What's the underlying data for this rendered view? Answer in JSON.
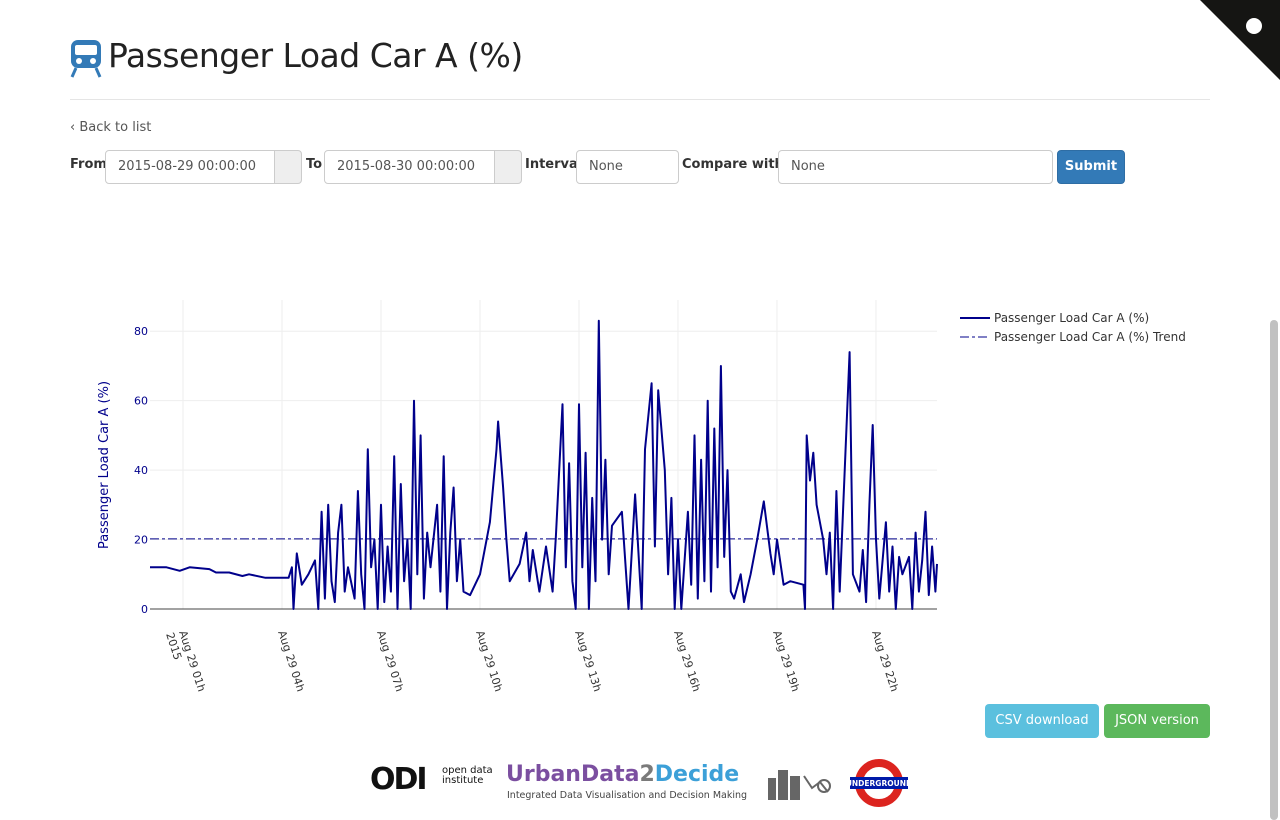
{
  "header": {
    "title": "Passenger Load Car A (%)"
  },
  "nav": {
    "back": "Back to list"
  },
  "form": {
    "from_label": "From",
    "from_value": "2015-08-29 00:00:00",
    "to_label": "To",
    "to_value": "2015-08-30 00:00:00",
    "interval_label": "Interval",
    "interval_value": "None",
    "compare_label": "Compare with..",
    "compare_value": "None",
    "submit": "Submit"
  },
  "downloads": {
    "csv": "CSV download",
    "json": "JSON version"
  },
  "footer": {
    "odi_mark": "ODI",
    "odi_text": "open data institute",
    "ud_part1": "UrbanData",
    "ud_part2": "2",
    "ud_part3": "Decide",
    "ud_tagline": "Integrated Data Visualisation and Decision Making",
    "underground": "UNDERGROUND"
  },
  "chart_data": {
    "type": "line",
    "y_label": "Passenger Load Car A (%)",
    "x_year_label": "2015",
    "xlim": [
      0,
      23.85
    ],
    "ylim": [
      0,
      89
    ],
    "grid": true,
    "xticks": [
      {
        "value": 1,
        "label": "Aug 29 01h"
      },
      {
        "value": 4,
        "label": "Aug 29 04h"
      },
      {
        "value": 7,
        "label": "Aug 29 07h"
      },
      {
        "value": 10,
        "label": "Aug 29 10h"
      },
      {
        "value": 13,
        "label": "Aug 29 13h"
      },
      {
        "value": 16,
        "label": "Aug 29 16h"
      },
      {
        "value": 19,
        "label": "Aug 29 19h"
      },
      {
        "value": 22,
        "label": "Aug 29 22h"
      }
    ],
    "yticks": [
      0,
      20,
      40,
      60,
      80
    ],
    "series": [
      {
        "name": "Passenger Load Car A (%)",
        "color": "#00008b",
        "dash": "solid",
        "x": [
          0,
          0.5,
          0.9,
          1.2,
          1.8,
          2.0,
          2.4,
          2.8,
          3.0,
          3.5,
          4.0,
          4.2,
          4.3,
          4.35,
          4.45,
          4.6,
          4.8,
          5.0,
          5.1,
          5.2,
          5.3,
          5.4,
          5.5,
          5.6,
          5.7,
          5.8,
          5.9,
          6.0,
          6.2,
          6.3,
          6.4,
          6.5,
          6.6,
          6.7,
          6.8,
          6.9,
          7.0,
          7.1,
          7.2,
          7.3,
          7.4,
          7.5,
          7.6,
          7.7,
          7.8,
          7.9,
          8.0,
          8.1,
          8.2,
          8.3,
          8.4,
          8.5,
          8.7,
          8.8,
          8.9,
          9.0,
          9.1,
          9.2,
          9.3,
          9.4,
          9.5,
          9.7,
          10.0,
          10.3,
          10.5,
          10.55,
          10.7,
          10.8,
          10.9,
          11.2,
          11.4,
          11.5,
          11.6,
          11.8,
          12.0,
          12.2,
          12.3,
          12.5,
          12.6,
          12.7,
          12.8,
          12.9,
          13.0,
          13.1,
          13.2,
          13.3,
          13.4,
          13.5,
          13.6,
          13.7,
          13.8,
          13.9,
          14.0,
          14.3,
          14.5,
          14.7,
          14.9,
          15.0,
          15.2,
          15.3,
          15.4,
          15.6,
          15.7,
          15.8,
          15.9,
          16.0,
          16.1,
          16.3,
          16.4,
          16.5,
          16.6,
          16.7,
          16.8,
          16.9,
          17.0,
          17.1,
          17.2,
          17.3,
          17.4,
          17.5,
          17.6,
          17.7,
          17.9,
          18.0,
          18.2,
          18.4,
          18.6,
          18.8,
          18.9,
          19.0,
          19.2,
          19.4,
          19.8,
          19.85,
          19.9,
          20.0,
          20.1,
          20.2,
          20.4,
          20.5,
          20.6,
          20.7,
          20.8,
          20.9,
          21.0,
          21.2,
          21.3,
          21.5,
          21.6,
          21.7,
          21.8,
          21.9,
          22.0,
          22.1,
          22.3,
          22.4,
          22.5,
          22.6,
          22.7,
          22.8,
          23.0,
          23.1,
          23.2,
          23.3,
          23.4,
          23.5,
          23.6,
          23.7,
          23.8,
          23.85
        ],
        "values": [
          12,
          12,
          11,
          12,
          11.5,
          10.5,
          10.5,
          9.5,
          10,
          9,
          9,
          9,
          12,
          0,
          16,
          7,
          10,
          14,
          0,
          28,
          3,
          30,
          8,
          2,
          22,
          30,
          5,
          12,
          3,
          34,
          10,
          0,
          46,
          12,
          20,
          0,
          30,
          2,
          18,
          5,
          44,
          0,
          36,
          8,
          20,
          0,
          60,
          10,
          50,
          3,
          22,
          12,
          30,
          5,
          44,
          0,
          22,
          35,
          8,
          20,
          5,
          4,
          10,
          25,
          46,
          54,
          35,
          20,
          8,
          13,
          22,
          8,
          17,
          5,
          18,
          5,
          21,
          59,
          12,
          42,
          8,
          0,
          59,
          12,
          45,
          0,
          32,
          8,
          83,
          20,
          43,
          10,
          24,
          28,
          0,
          33,
          0,
          46,
          65,
          18,
          63,
          40,
          10,
          32,
          0,
          20,
          0,
          28,
          7,
          50,
          3,
          43,
          8,
          60,
          5,
          52,
          12,
          70,
          15,
          40,
          5,
          3,
          10,
          2,
          10,
          20,
          31,
          16,
          10,
          20,
          7,
          8,
          7,
          0,
          50,
          37,
          45,
          30,
          20,
          10,
          22,
          0,
          34,
          5,
          28,
          74,
          10,
          5,
          17,
          2,
          30,
          53,
          20,
          3,
          25,
          5,
          18,
          0,
          15,
          10,
          15,
          0,
          22,
          5,
          14,
          28,
          4,
          18,
          5,
          13
        ]
      },
      {
        "name": "Passenger Load Car A (%) Trend",
        "color": "#00008b",
        "dash": "dashdot",
        "x": [
          0,
          23.85
        ],
        "values": [
          20.2,
          20.2
        ]
      }
    ]
  }
}
